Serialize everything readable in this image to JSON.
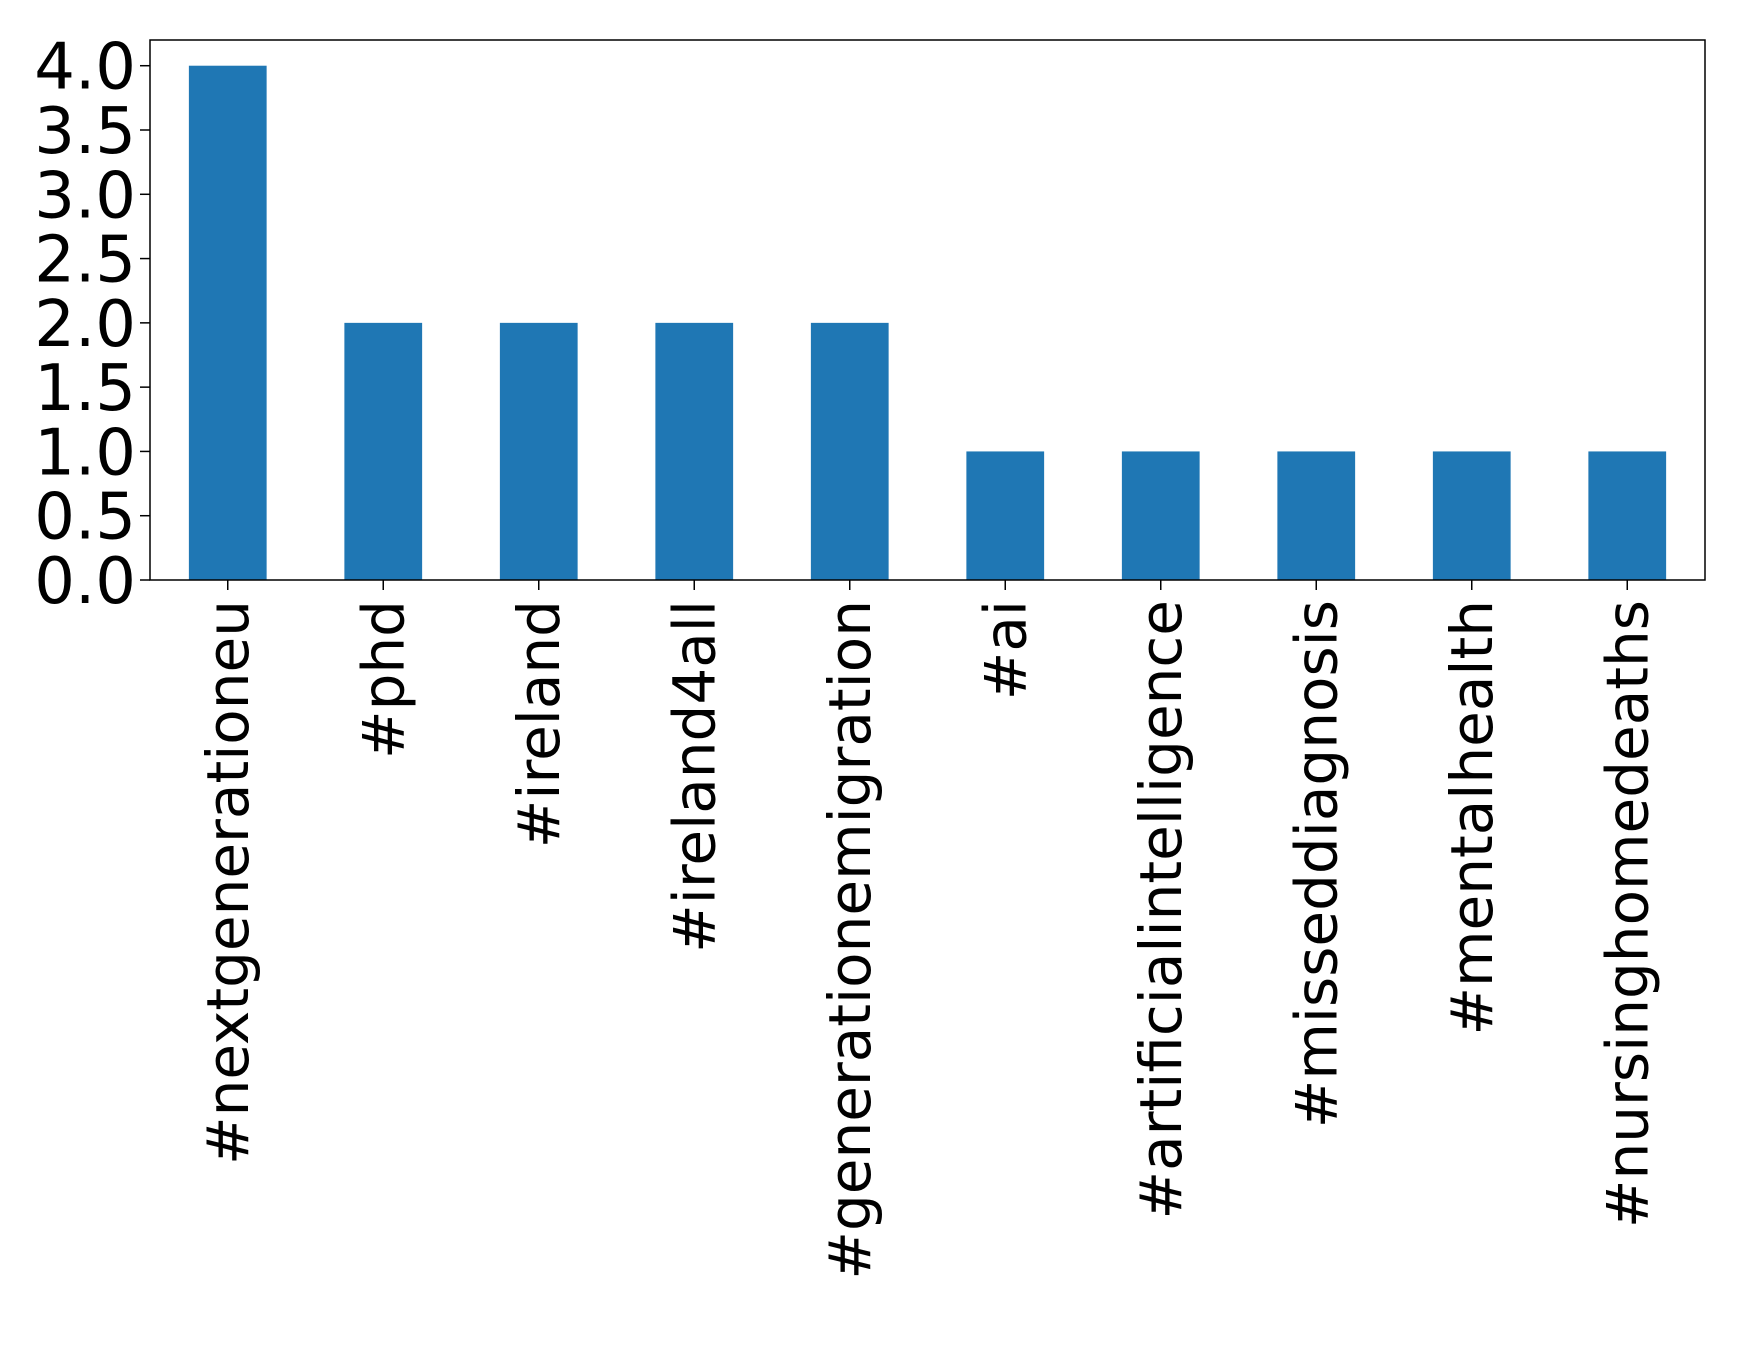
{
  "chart_data": {
    "type": "bar",
    "title": "",
    "xlabel": "",
    "ylabel": "",
    "categories": [
      "#nextgenerationeu",
      "#phd",
      "#ireland",
      "#ireland4all",
      "#generationemigration",
      "#ai",
      "#artificialintelligence",
      "#misseddiagnosis",
      "#mentalhealth",
      "#nursinghomedeaths"
    ],
    "values": [
      4,
      2,
      2,
      2,
      2,
      1,
      1,
      1,
      1,
      1
    ],
    "ylim": [
      0,
      4.2
    ],
    "yticks": [
      "0.0",
      "0.5",
      "1.0",
      "1.5",
      "2.0",
      "2.5",
      "3.0",
      "3.5",
      "4.0"
    ],
    "grid": false,
    "legend": "none",
    "colors": {
      "bar": "#1f77b4",
      "axis": "#000000",
      "background": "#ffffff"
    }
  }
}
